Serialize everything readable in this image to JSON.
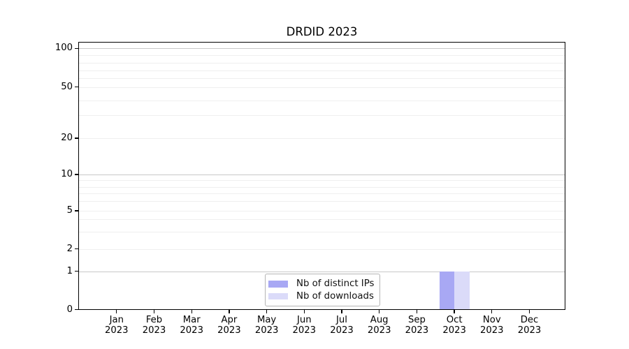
{
  "chart_data": {
    "type": "bar",
    "title": "DRDID 2023",
    "x_axis": {
      "categories": [
        {
          "month": "Jan",
          "year": "2023"
        },
        {
          "month": "Feb",
          "year": "2023"
        },
        {
          "month": "Mar",
          "year": "2023"
        },
        {
          "month": "Apr",
          "year": "2023"
        },
        {
          "month": "May",
          "year": "2023"
        },
        {
          "month": "Jun",
          "year": "2023"
        },
        {
          "month": "Jul",
          "year": "2023"
        },
        {
          "month": "Aug",
          "year": "2023"
        },
        {
          "month": "Sep",
          "year": "2023"
        },
        {
          "month": "Oct",
          "year": "2023"
        },
        {
          "month": "Nov",
          "year": "2023"
        },
        {
          "month": "Dec",
          "year": "2023"
        }
      ]
    },
    "y_axis": {
      "scale": "symlog",
      "tick_values": [
        0,
        1,
        2,
        5,
        10,
        20,
        50,
        100
      ],
      "minor_grid_values": [
        3,
        4,
        6,
        7,
        8,
        9,
        30,
        40,
        60,
        70,
        80,
        90
      ],
      "major_grid_values": [
        1,
        10,
        100
      ],
      "ylim": [
        0,
        110
      ]
    },
    "series": [
      {
        "name": "Nb of distinct IPs",
        "color": "#a8a8f4",
        "values": [
          0,
          0,
          0,
          0,
          0,
          0,
          0,
          0,
          0,
          1,
          0,
          0
        ]
      },
      {
        "name": "Nb of downloads",
        "color": "#dbdbf9",
        "values": [
          0,
          0,
          0,
          0,
          0,
          0,
          0,
          0,
          0,
          1,
          0,
          0
        ]
      }
    ],
    "legend": {
      "position": "bottom-center",
      "border_color": "#b4b4b4",
      "background": "#ffffff"
    },
    "grid": {
      "minor_color": "#efefef",
      "major_color": "#c8c8c8"
    },
    "colors": {
      "axis": "#000000",
      "text": "#000000",
      "background": "#ffffff"
    }
  }
}
